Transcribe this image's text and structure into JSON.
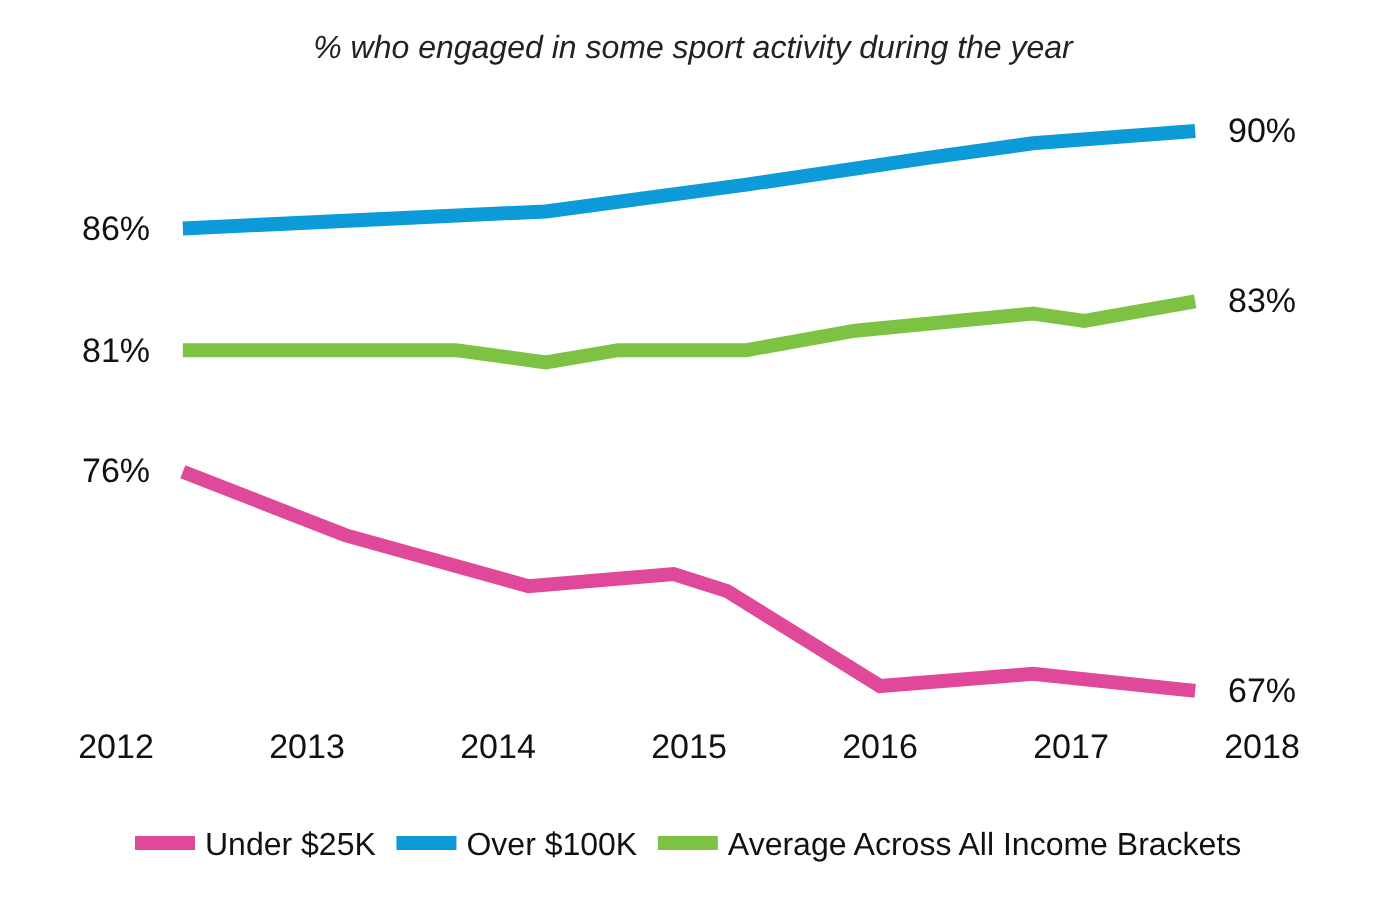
{
  "chart_data": {
    "type": "line",
    "title": "% who engaged in some sport activity during the year",
    "xlim": [
      2012,
      2018
    ],
    "xticks": [
      2012,
      2013,
      2014,
      2015,
      2016,
      2017,
      2018
    ],
    "legend": "bottom",
    "marker": "none",
    "line_style": "solid",
    "series": [
      {
        "name": "Under $25K",
        "color": "#e0489a",
        "x": [
          2012.35,
          2013.2,
          2014.16,
          2014.92,
          2015.2,
          2016.0,
          2016.8,
          2017.65
        ],
        "values": [
          76,
          73.4,
          71.3,
          71.8,
          71.1,
          67.2,
          67.7,
          67
        ],
        "value_labels": [
          "76%",
          null,
          null,
          null,
          null,
          null,
          null,
          "67%"
        ]
      },
      {
        "name": "Over $100K",
        "color": "#0d9ad8",
        "x": [
          2012.35,
          2014.25,
          2015.3,
          2016.25,
          2016.8,
          2017.65
        ],
        "values": [
          86,
          86.7,
          87.8,
          88.9,
          89.5,
          90
        ],
        "value_labels": [
          "86%",
          null,
          null,
          null,
          null,
          "90%"
        ]
      },
      {
        "name": "Average Across All Income Brackets",
        "color": "#7dc242",
        "x": [
          2012.35,
          2013.78,
          2014.25,
          2014.63,
          2015.3,
          2015.87,
          2016.8,
          2017.07,
          2017.65
        ],
        "values": [
          81,
          81,
          80.5,
          81,
          81,
          81.8,
          82.5,
          82.2,
          83
        ],
        "value_labels": [
          "81%",
          null,
          null,
          null,
          null,
          null,
          null,
          null,
          "83%"
        ]
      }
    ]
  }
}
